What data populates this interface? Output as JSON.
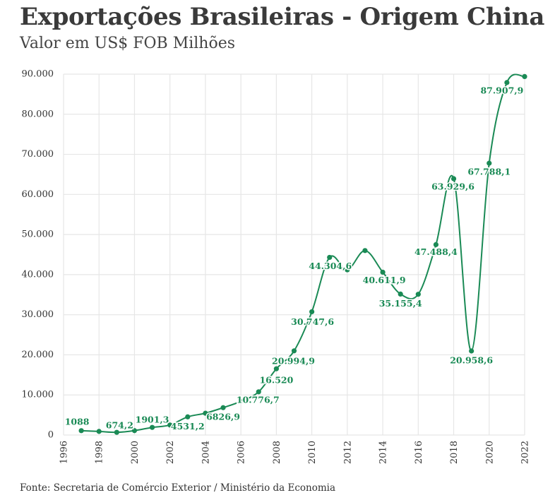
{
  "title": "Exportações Brasileiras - Origem China",
  "subtitle": "Valor em US$ FOB Milhões",
  "source": "Fonte: Secretaria de Comércio Exterior / Ministério da Economia",
  "colors": {
    "series": "#1a8a55",
    "grid": "#e6e6e6",
    "text": "#333333"
  },
  "chart_data": {
    "type": "line",
    "title": "Exportações Brasileiras - Origem China",
    "subtitle": "Valor em US$ FOB Milhões",
    "xlabel": "",
    "ylabel": "",
    "xlim": [
      1996,
      2022
    ],
    "ylim": [
      0,
      90000
    ],
    "grid": true,
    "legend": "none",
    "x_ticks": [
      {
        "value": 1996,
        "label": "1996"
      },
      {
        "value": 1998,
        "label": "1998"
      },
      {
        "value": 2000,
        "label": "2000"
      },
      {
        "value": 2002,
        "label": "2002"
      },
      {
        "value": 2004,
        "label": "2004"
      },
      {
        "value": 2006,
        "label": "2006"
      },
      {
        "value": 2008,
        "label": "2008"
      },
      {
        "value": 2010,
        "label": "2010"
      },
      {
        "value": 2012,
        "label": "2012"
      },
      {
        "value": 2014,
        "label": "2014"
      },
      {
        "value": 2016,
        "label": "2016"
      },
      {
        "value": 2018,
        "label": "2018"
      },
      {
        "value": 2020,
        "label": "2020"
      },
      {
        "value": 2022,
        "label": "2022"
      }
    ],
    "y_ticks": [
      {
        "value": 0,
        "label": "0"
      },
      {
        "value": 10000,
        "label": "10.000"
      },
      {
        "value": 20000,
        "label": "20.000"
      },
      {
        "value": 30000,
        "label": "30.000"
      },
      {
        "value": 40000,
        "label": "40.000"
      },
      {
        "value": 50000,
        "label": "50.000"
      },
      {
        "value": 60000,
        "label": "60.000"
      },
      {
        "value": 70000,
        "label": "70.000"
      },
      {
        "value": 80000,
        "label": "80.000"
      },
      {
        "value": 90000,
        "label": "90.000"
      }
    ],
    "series": [
      {
        "points": [
          {
            "x": 1997,
            "y": 1088,
            "label": "1088"
          },
          {
            "x": 1998,
            "y": 900,
            "label": ""
          },
          {
            "x": 1999,
            "y": 674.2,
            "label": "674,2"
          },
          {
            "x": 2000,
            "y": 1100,
            "label": ""
          },
          {
            "x": 2001,
            "y": 1901.3,
            "label": "1901,3"
          },
          {
            "x": 2002,
            "y": 2500,
            "label": ""
          },
          {
            "x": 2003,
            "y": 4531.2,
            "label": "4531,2"
          },
          {
            "x": 2004,
            "y": 5440,
            "label": ""
          },
          {
            "x": 2005,
            "y": 6826.9,
            "label": "6826,9"
          },
          {
            "x": 2006,
            "y": 8400,
            "label": ""
          },
          {
            "x": 2007,
            "y": 10776.7,
            "label": "10.776,7"
          },
          {
            "x": 2008,
            "y": 16520,
            "label": "16.520"
          },
          {
            "x": 2009,
            "y": 20994.9,
            "label": "20.994,9"
          },
          {
            "x": 2010,
            "y": 30747.6,
            "label": "30.747,6"
          },
          {
            "x": 2011,
            "y": 44304.6,
            "label": "44.304,6"
          },
          {
            "x": 2012,
            "y": 41200,
            "label": ""
          },
          {
            "x": 2013,
            "y": 46000,
            "label": ""
          },
          {
            "x": 2014,
            "y": 40611.9,
            "label": "40.611,9"
          },
          {
            "x": 2015,
            "y": 35155.4,
            "label": "35.155,4"
          },
          {
            "x": 2016,
            "y": 35100,
            "label": ""
          },
          {
            "x": 2017,
            "y": 47488.4,
            "label": "47.488,4"
          },
          {
            "x": 2018,
            "y": 63929.6,
            "label": "63.929,6"
          },
          {
            "x": 2019,
            "y": 20958.6,
            "label": "20.958,6"
          },
          {
            "x": 2020,
            "y": 67788.1,
            "label": "67.788,1"
          },
          {
            "x": 2021,
            "y": 87907.9,
            "label": "87.907,9"
          },
          {
            "x": 2022,
            "y": 89400,
            "label": ""
          }
        ]
      }
    ]
  }
}
